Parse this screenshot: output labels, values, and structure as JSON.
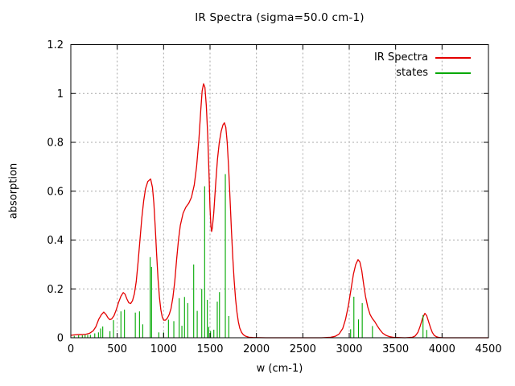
{
  "title": "IR Spectra (sigma=50.0 cm-1)",
  "legend": {
    "entries": [
      {
        "label": "IR Spectra",
        "color": "#e40000"
      },
      {
        "label": "states",
        "color": "#00a800"
      }
    ]
  },
  "chart_data": {
    "type": "line",
    "title": "IR Spectra (sigma=50.0 cm-1)",
    "xlabel": "w (cm-1)",
    "ylabel": "absorption",
    "xlim": [
      0,
      4500
    ],
    "ylim": [
      0,
      1.2
    ],
    "grid": true,
    "grid_color": "#a8a8a8",
    "border_color": "#000000",
    "legend_position": "top-right",
    "xticks": [
      [
        0,
        "0"
      ],
      [
        500,
        "500"
      ],
      [
        1000,
        "1000"
      ],
      [
        1500,
        "1500"
      ],
      [
        2000,
        "2000"
      ],
      [
        2500,
        "2500"
      ],
      [
        3000,
        "3000"
      ],
      [
        3500,
        "3500"
      ],
      [
        4000,
        "4000"
      ],
      [
        4500,
        "4500"
      ]
    ],
    "yticks": [
      [
        0,
        "0"
      ],
      [
        0.2,
        "0.2"
      ],
      [
        0.4,
        "0.4"
      ],
      [
        0.6,
        "0.6"
      ],
      [
        0.8,
        "0.8"
      ],
      [
        1,
        "1"
      ],
      [
        1.2,
        "1.2"
      ]
    ],
    "series": [
      {
        "name": "IR Spectra",
        "style": "line",
        "color": "#e40000",
        "points": [
          [
            0,
            0.01
          ],
          [
            40,
            0.012
          ],
          [
            80,
            0.013
          ],
          [
            120,
            0.013
          ],
          [
            160,
            0.014
          ],
          [
            200,
            0.018
          ],
          [
            240,
            0.028
          ],
          [
            270,
            0.045
          ],
          [
            300,
            0.075
          ],
          [
            330,
            0.095
          ],
          [
            355,
            0.105
          ],
          [
            380,
            0.095
          ],
          [
            400,
            0.082
          ],
          [
            420,
            0.074
          ],
          [
            440,
            0.077
          ],
          [
            465,
            0.09
          ],
          [
            490,
            0.115
          ],
          [
            515,
            0.145
          ],
          [
            540,
            0.17
          ],
          [
            565,
            0.185
          ],
          [
            585,
            0.178
          ],
          [
            605,
            0.158
          ],
          [
            625,
            0.143
          ],
          [
            645,
            0.14
          ],
          [
            665,
            0.152
          ],
          [
            685,
            0.18
          ],
          [
            705,
            0.23
          ],
          [
            725,
            0.31
          ],
          [
            745,
            0.4
          ],
          [
            765,
            0.49
          ],
          [
            785,
            0.56
          ],
          [
            805,
            0.61
          ],
          [
            830,
            0.64
          ],
          [
            860,
            0.65
          ],
          [
            880,
            0.615
          ],
          [
            895,
            0.55
          ],
          [
            910,
            0.45
          ],
          [
            925,
            0.34
          ],
          [
            940,
            0.24
          ],
          [
            955,
            0.165
          ],
          [
            970,
            0.115
          ],
          [
            985,
            0.085
          ],
          [
            1000,
            0.072
          ],
          [
            1020,
            0.072
          ],
          [
            1040,
            0.08
          ],
          [
            1060,
            0.095
          ],
          [
            1080,
            0.12
          ],
          [
            1100,
            0.165
          ],
          [
            1120,
            0.23
          ],
          [
            1140,
            0.32
          ],
          [
            1160,
            0.4
          ],
          [
            1180,
            0.46
          ],
          [
            1210,
            0.51
          ],
          [
            1240,
            0.535
          ],
          [
            1270,
            0.55
          ],
          [
            1300,
            0.575
          ],
          [
            1330,
            0.625
          ],
          [
            1355,
            0.7
          ],
          [
            1380,
            0.81
          ],
          [
            1400,
            0.93
          ],
          [
            1415,
            1.01
          ],
          [
            1430,
            1.04
          ],
          [
            1445,
            1.025
          ],
          [
            1460,
            0.95
          ],
          [
            1475,
            0.83
          ],
          [
            1490,
            0.66
          ],
          [
            1500,
            0.53
          ],
          [
            1510,
            0.455
          ],
          [
            1517,
            0.435
          ],
          [
            1525,
            0.45
          ],
          [
            1540,
            0.51
          ],
          [
            1560,
            0.625
          ],
          [
            1580,
            0.73
          ],
          [
            1600,
            0.8
          ],
          [
            1620,
            0.845
          ],
          [
            1640,
            0.872
          ],
          [
            1655,
            0.88
          ],
          [
            1670,
            0.862
          ],
          [
            1685,
            0.8
          ],
          [
            1700,
            0.7
          ],
          [
            1715,
            0.575
          ],
          [
            1730,
            0.445
          ],
          [
            1745,
            0.33
          ],
          [
            1760,
            0.235
          ],
          [
            1775,
            0.16
          ],
          [
            1790,
            0.105
          ],
          [
            1805,
            0.066
          ],
          [
            1820,
            0.04
          ],
          [
            1840,
            0.022
          ],
          [
            1860,
            0.012
          ],
          [
            1885,
            0.006
          ],
          [
            1920,
            0.002
          ],
          [
            1960,
            0.001
          ],
          [
            2100,
            0.0
          ],
          [
            2400,
            0.0
          ],
          [
            2700,
            0.0
          ],
          [
            2800,
            0.002
          ],
          [
            2850,
            0.006
          ],
          [
            2890,
            0.015
          ],
          [
            2930,
            0.038
          ],
          [
            2960,
            0.075
          ],
          [
            2990,
            0.13
          ],
          [
            3020,
            0.2
          ],
          [
            3045,
            0.26
          ],
          [
            3070,
            0.3
          ],
          [
            3095,
            0.32
          ],
          [
            3115,
            0.31
          ],
          [
            3135,
            0.275
          ],
          [
            3155,
            0.22
          ],
          [
            3175,
            0.17
          ],
          [
            3200,
            0.125
          ],
          [
            3225,
            0.095
          ],
          [
            3250,
            0.078
          ],
          [
            3275,
            0.066
          ],
          [
            3300,
            0.05
          ],
          [
            3330,
            0.033
          ],
          [
            3360,
            0.019
          ],
          [
            3395,
            0.01
          ],
          [
            3430,
            0.005
          ],
          [
            3470,
            0.002
          ],
          [
            3520,
            0.001
          ],
          [
            3600,
            0.0
          ],
          [
            3680,
            0.002
          ],
          [
            3710,
            0.007
          ],
          [
            3740,
            0.022
          ],
          [
            3765,
            0.048
          ],
          [
            3790,
            0.08
          ],
          [
            3815,
            0.1
          ],
          [
            3835,
            0.09
          ],
          [
            3855,
            0.066
          ],
          [
            3875,
            0.042
          ],
          [
            3895,
            0.022
          ],
          [
            3915,
            0.01
          ],
          [
            3940,
            0.004
          ],
          [
            3970,
            0.001
          ],
          [
            4020,
            0.0
          ],
          [
            4250,
            0.0
          ],
          [
            4500,
            0.0
          ]
        ]
      },
      {
        "name": "states",
        "style": "impulses",
        "color": "#00a800",
        "points": [
          [
            37,
            0.008
          ],
          [
            84,
            0.01
          ],
          [
            124,
            0.01
          ],
          [
            154,
            0.012
          ],
          [
            182,
            0.012
          ],
          [
            211,
            0.012
          ],
          [
            258,
            0.018
          ],
          [
            298,
            0.022
          ],
          [
            321,
            0.038
          ],
          [
            344,
            0.046
          ],
          [
            422,
            0.027
          ],
          [
            460,
            0.072
          ],
          [
            540,
            0.108
          ],
          [
            578,
            0.115
          ],
          [
            695,
            0.103
          ],
          [
            740,
            0.108
          ],
          [
            775,
            0.055
          ],
          [
            855,
            0.33
          ],
          [
            870,
            0.29
          ],
          [
            948,
            0.022
          ],
          [
            1000,
            0.022
          ],
          [
            1052,
            0.074
          ],
          [
            1110,
            0.068
          ],
          [
            1168,
            0.162
          ],
          [
            1197,
            0.049
          ],
          [
            1225,
            0.167
          ],
          [
            1260,
            0.142
          ],
          [
            1324,
            0.3
          ],
          [
            1362,
            0.11
          ],
          [
            1411,
            0.2
          ],
          [
            1442,
            0.62
          ],
          [
            1471,
            0.155
          ],
          [
            1486,
            0.044
          ],
          [
            1506,
            0.027
          ],
          [
            1541,
            0.033
          ],
          [
            1578,
            0.148
          ],
          [
            1602,
            0.187
          ],
          [
            1665,
            0.67
          ],
          [
            1702,
            0.089
          ],
          [
            3015,
            0.035
          ],
          [
            3050,
            0.168
          ],
          [
            3100,
            0.075
          ],
          [
            3140,
            0.142
          ],
          [
            3250,
            0.048
          ],
          [
            3795,
            0.093
          ],
          [
            3835,
            0.032
          ]
        ]
      }
    ]
  }
}
